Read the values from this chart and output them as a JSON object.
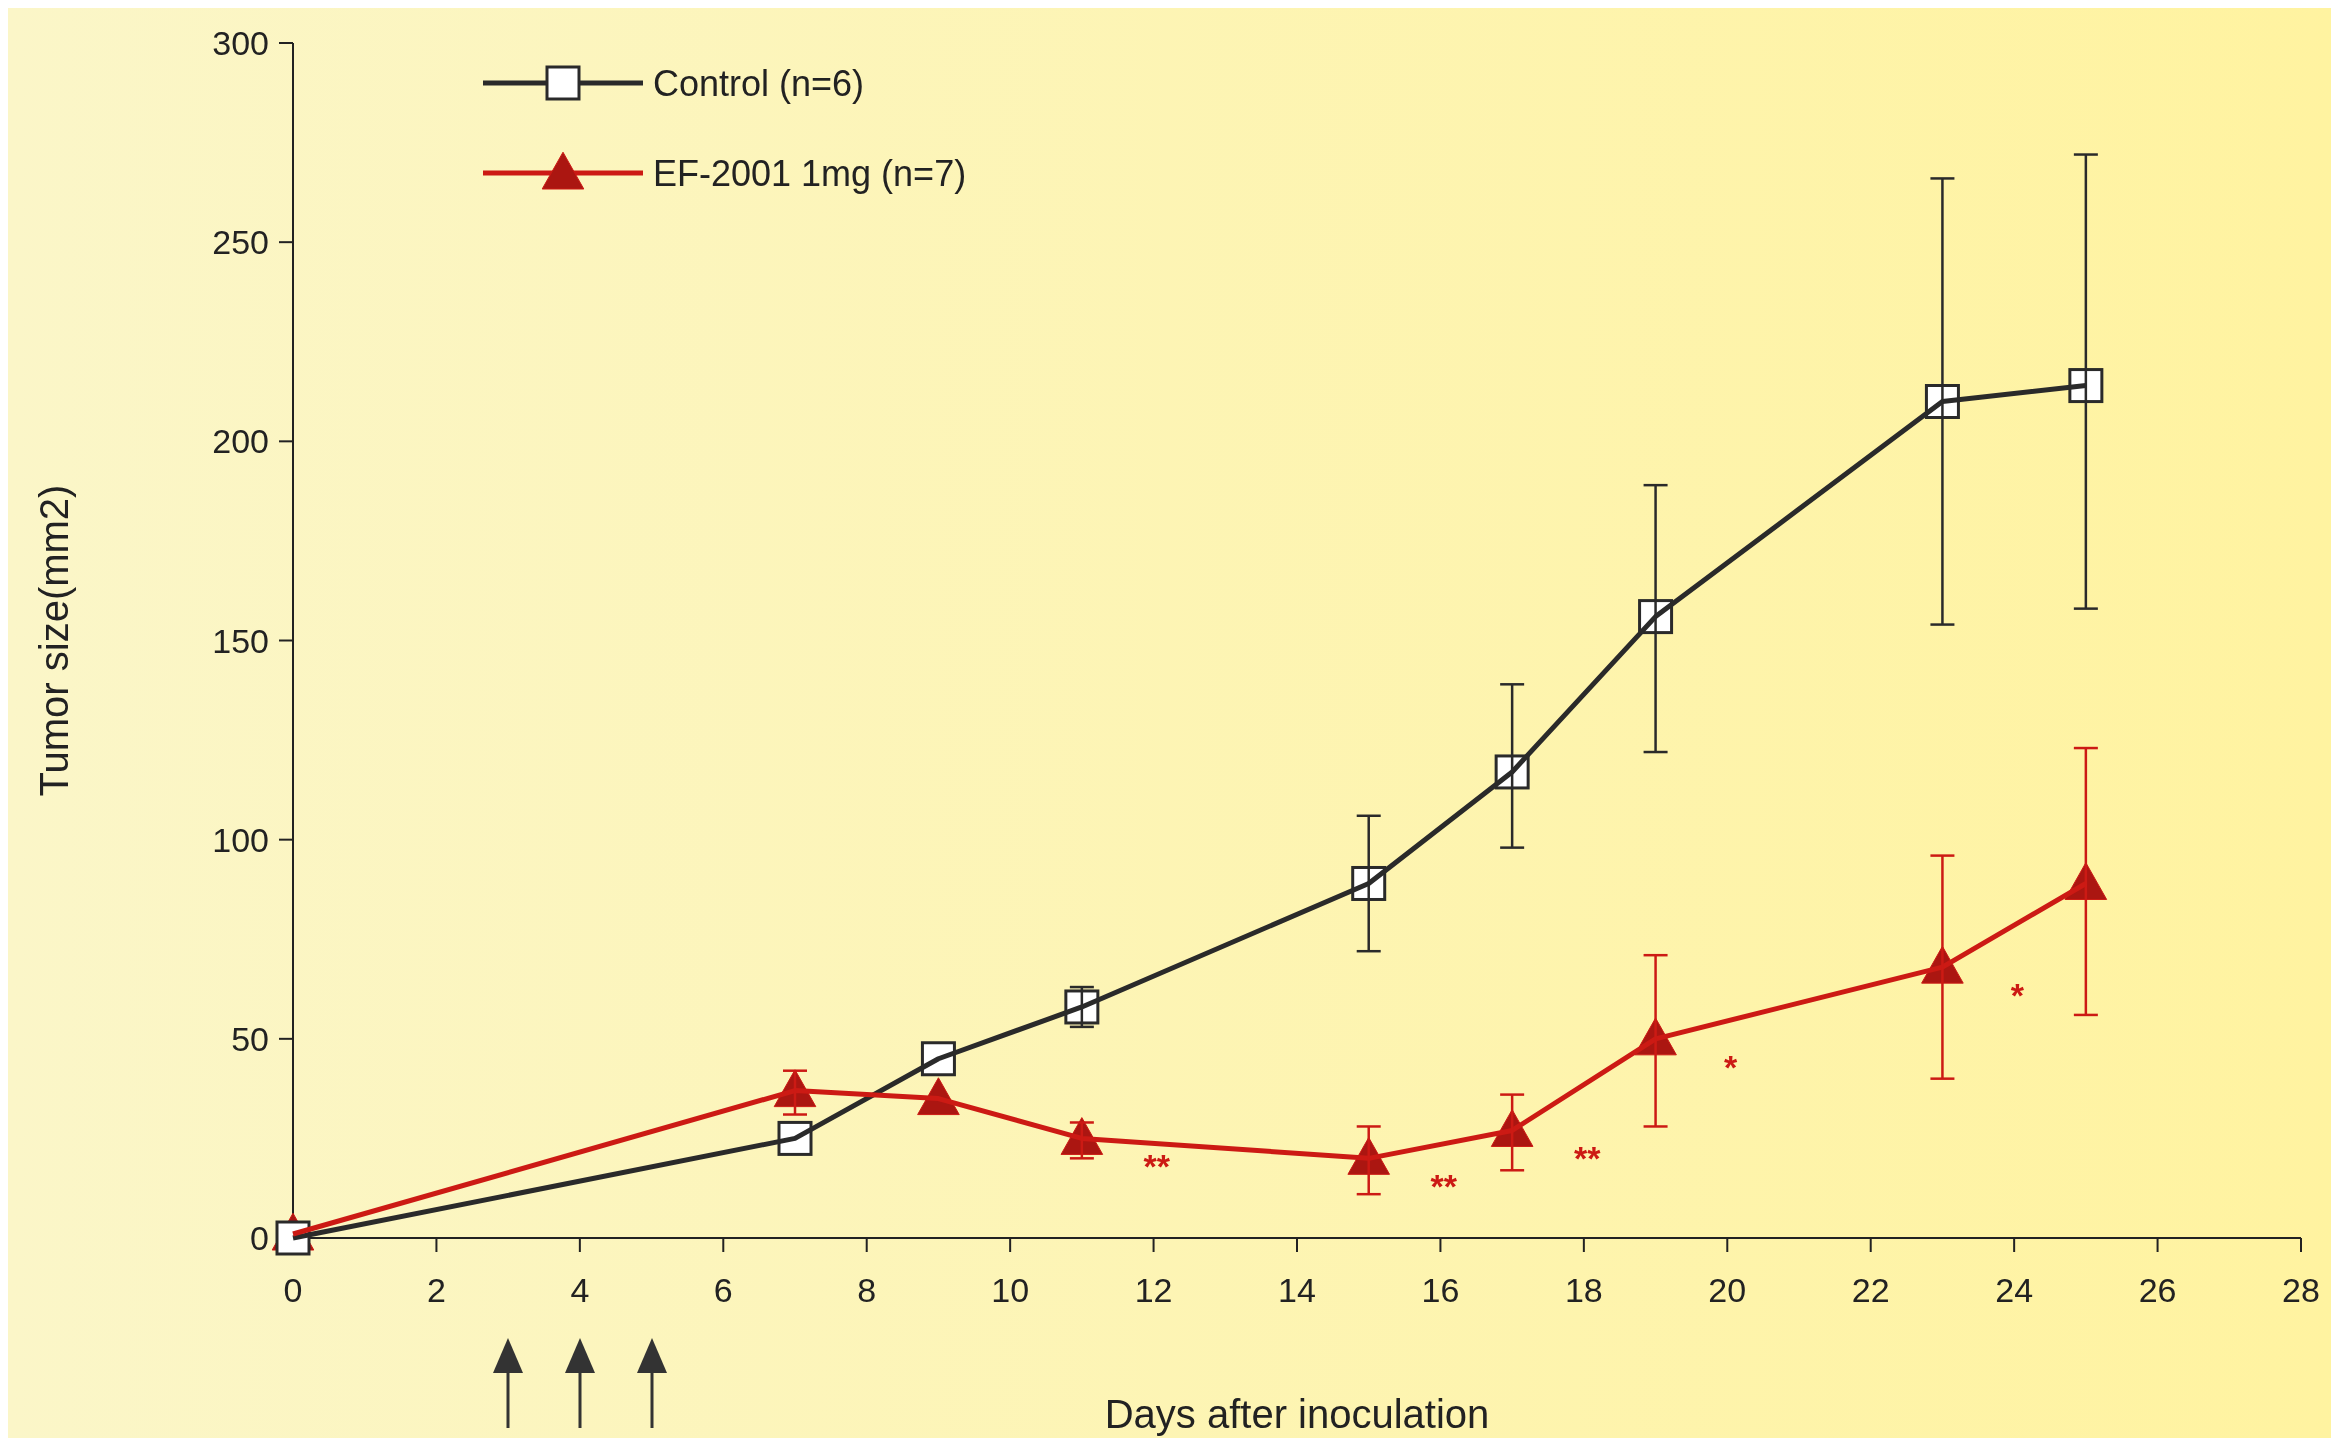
{
  "chart_data": {
    "type": "line",
    "xlabel": "Days after inoculation",
    "ylabel": "Tumor size(mm2)",
    "xlim": [
      0,
      28
    ],
    "xticks": [
      0,
      2,
      4,
      6,
      8,
      10,
      12,
      14,
      16,
      18,
      20,
      22,
      24,
      26,
      28
    ],
    "ylim": [
      0,
      300
    ],
    "yticks": [
      0,
      50,
      100,
      150,
      200,
      250,
      300
    ],
    "legend": "top left",
    "grid": false,
    "series": [
      {
        "name": "Control (n=6)",
        "color": "#2a2a2a",
        "marker": "square",
        "x": [
          0,
          7,
          9,
          11,
          15,
          17,
          19,
          23,
          25
        ],
        "values": [
          0,
          25,
          45,
          58,
          89,
          117,
          156,
          210,
          214
        ],
        "errors": [
          null,
          null,
          null,
          [
            53,
            63
          ],
          [
            72,
            106
          ],
          [
            98,
            139
          ],
          [
            122,
            189
          ],
          [
            154,
            266
          ],
          [
            158,
            272
          ]
        ]
      },
      {
        "name": "EF-2001 1mg (n=7)",
        "color": "#cc1a14",
        "marker": "triangle",
        "x": [
          0,
          7,
          9,
          11,
          15,
          17,
          19,
          23,
          25
        ],
        "values": [
          1,
          37,
          35,
          25,
          20,
          27,
          50,
          68,
          89
        ],
        "errors": [
          null,
          [
            31,
            42
          ],
          null,
          [
            20,
            29
          ],
          [
            11,
            28
          ],
          [
            17,
            36
          ],
          [
            28,
            71
          ],
          [
            40,
            96
          ],
          [
            56,
            123
          ]
        ]
      }
    ],
    "annotations": [
      {
        "text": "**",
        "x": 11,
        "y": 25
      },
      {
        "text": "**",
        "x": 15,
        "y": 20
      },
      {
        "text": "**",
        "x": 17,
        "y": 27
      },
      {
        "text": "*",
        "x": 19,
        "y": 50
      },
      {
        "text": "*",
        "x": 23,
        "y": 68
      }
    ]
  }
}
